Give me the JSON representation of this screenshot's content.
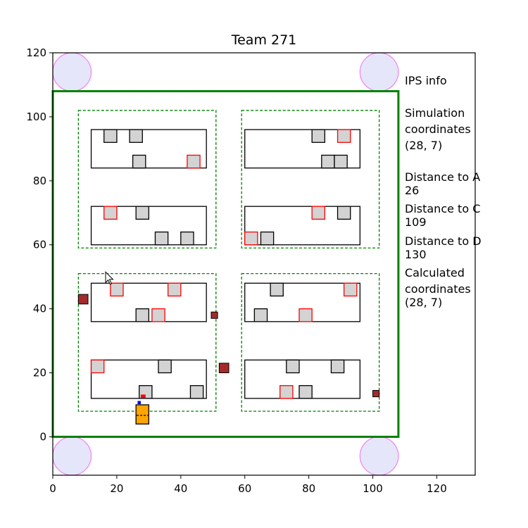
{
  "chart_data": {
    "type": "scatter",
    "title": "Team 271",
    "xlim": [
      0,
      132
    ],
    "ylim": [
      -12,
      120
    ],
    "xticks": [
      0,
      20,
      40,
      60,
      80,
      100,
      120
    ],
    "yticks": [
      0,
      20,
      40,
      60,
      80,
      100,
      120
    ],
    "arena": {
      "x0": 0,
      "y0": 0,
      "x1": 108,
      "y1": 108,
      "color": "#008000"
    },
    "beacons": [
      {
        "x": 6,
        "y": 114
      },
      {
        "x": 102,
        "y": 114
      },
      {
        "x": 6,
        "y": -6
      },
      {
        "x": 102,
        "y": -6
      }
    ],
    "beacon_radius": 6,
    "zones": [
      {
        "x0": 8,
        "y0": 59,
        "x1": 51,
        "y1": 102
      },
      {
        "x0": 59,
        "y0": 59,
        "x1": 102,
        "y1": 102
      },
      {
        "x0": 8,
        "y0": 8,
        "x1": 51,
        "y1": 51
      },
      {
        "x0": 59,
        "y0": 8,
        "x1": 102,
        "y1": 51
      }
    ],
    "shelves": [
      {
        "x0": 12,
        "y0": 84,
        "x1": 48,
        "y1": 96
      },
      {
        "x0": 60,
        "y0": 84,
        "x1": 96,
        "y1": 96
      },
      {
        "x0": 12,
        "y0": 60,
        "x1": 48,
        "y1": 72
      },
      {
        "x0": 60,
        "y0": 60,
        "x1": 96,
        "y1": 72
      },
      {
        "x0": 12,
        "y0": 36,
        "x1": 48,
        "y1": 48
      },
      {
        "x0": 60,
        "y0": 36,
        "x1": 96,
        "y1": 48
      },
      {
        "x0": 12,
        "y0": 12,
        "x1": 48,
        "y1": 24
      },
      {
        "x0": 60,
        "y0": 12,
        "x1": 96,
        "y1": 24
      }
    ],
    "box_size": 4,
    "boxes": [
      {
        "x": 16,
        "y": 92,
        "color": "black"
      },
      {
        "x": 24,
        "y": 92,
        "color": "black"
      },
      {
        "x": 25,
        "y": 84,
        "color": "black"
      },
      {
        "x": 42,
        "y": 84,
        "color": "red"
      },
      {
        "x": 81,
        "y": 92,
        "color": "black"
      },
      {
        "x": 89,
        "y": 92,
        "color": "red"
      },
      {
        "x": 84,
        "y": 84,
        "color": "black"
      },
      {
        "x": 88,
        "y": 84,
        "color": "black"
      },
      {
        "x": 16,
        "y": 68,
        "color": "red"
      },
      {
        "x": 26,
        "y": 68,
        "color": "black"
      },
      {
        "x": 32,
        "y": 60,
        "color": "black"
      },
      {
        "x": 40,
        "y": 60,
        "color": "black"
      },
      {
        "x": 81,
        "y": 68,
        "color": "red"
      },
      {
        "x": 89,
        "y": 68,
        "color": "black"
      },
      {
        "x": 60,
        "y": 60,
        "color": "red"
      },
      {
        "x": 65,
        "y": 60,
        "color": "black"
      },
      {
        "x": 18,
        "y": 44,
        "color": "red"
      },
      {
        "x": 36,
        "y": 44,
        "color": "red"
      },
      {
        "x": 26,
        "y": 36,
        "color": "black"
      },
      {
        "x": 31,
        "y": 36,
        "color": "red"
      },
      {
        "x": 68,
        "y": 44,
        "color": "black"
      },
      {
        "x": 91,
        "y": 44,
        "color": "red"
      },
      {
        "x": 63,
        "y": 36,
        "color": "black"
      },
      {
        "x": 77,
        "y": 36,
        "color": "red"
      },
      {
        "x": 12,
        "y": 20,
        "color": "red"
      },
      {
        "x": 33,
        "y": 20,
        "color": "black"
      },
      {
        "x": 27,
        "y": 12,
        "color": "black"
      },
      {
        "x": 43,
        "y": 12,
        "color": "black"
      },
      {
        "x": 73,
        "y": 20,
        "color": "black"
      },
      {
        "x": 87,
        "y": 20,
        "color": "black"
      },
      {
        "x": 71,
        "y": 12,
        "color": "red"
      },
      {
        "x": 77,
        "y": 12,
        "color": "black"
      }
    ],
    "obstacles": [
      {
        "x": 8,
        "y": 41.5,
        "w": 3,
        "h": 3
      },
      {
        "x": 49.5,
        "y": 37,
        "w": 2,
        "h": 2
      },
      {
        "x": 52,
        "y": 20,
        "w": 3,
        "h": 3
      },
      {
        "x": 100,
        "y": 12.5,
        "w": 2,
        "h": 2
      }
    ],
    "robot": {
      "x": 28,
      "y": 7,
      "w": 4,
      "h": 6,
      "color": "#ffa500"
    },
    "robot_heading_marks": [
      {
        "x": 26.5,
        "y": 10.2,
        "w": 1,
        "h": 1,
        "color": "#0000ff"
      },
      {
        "x": 27.5,
        "y": 12.2,
        "w": 1.5,
        "h": 1,
        "color": "#ff0000"
      }
    ],
    "cursor": {
      "x": 16.5,
      "y": 51.5
    }
  },
  "info": {
    "heading": "IPS info",
    "sim_label": "Simulation\ncoordinates",
    "sim_value": "(28, 7)",
    "dist_a_label": "Distance to A",
    "dist_a_value": "26",
    "dist_c_label": "Distance to C",
    "dist_c_value": "109",
    "dist_d_label": "Distance to D",
    "dist_d_value": "130",
    "calc_label": "Calculated\ncoordinates",
    "calc_value": "(28, 7)"
  }
}
